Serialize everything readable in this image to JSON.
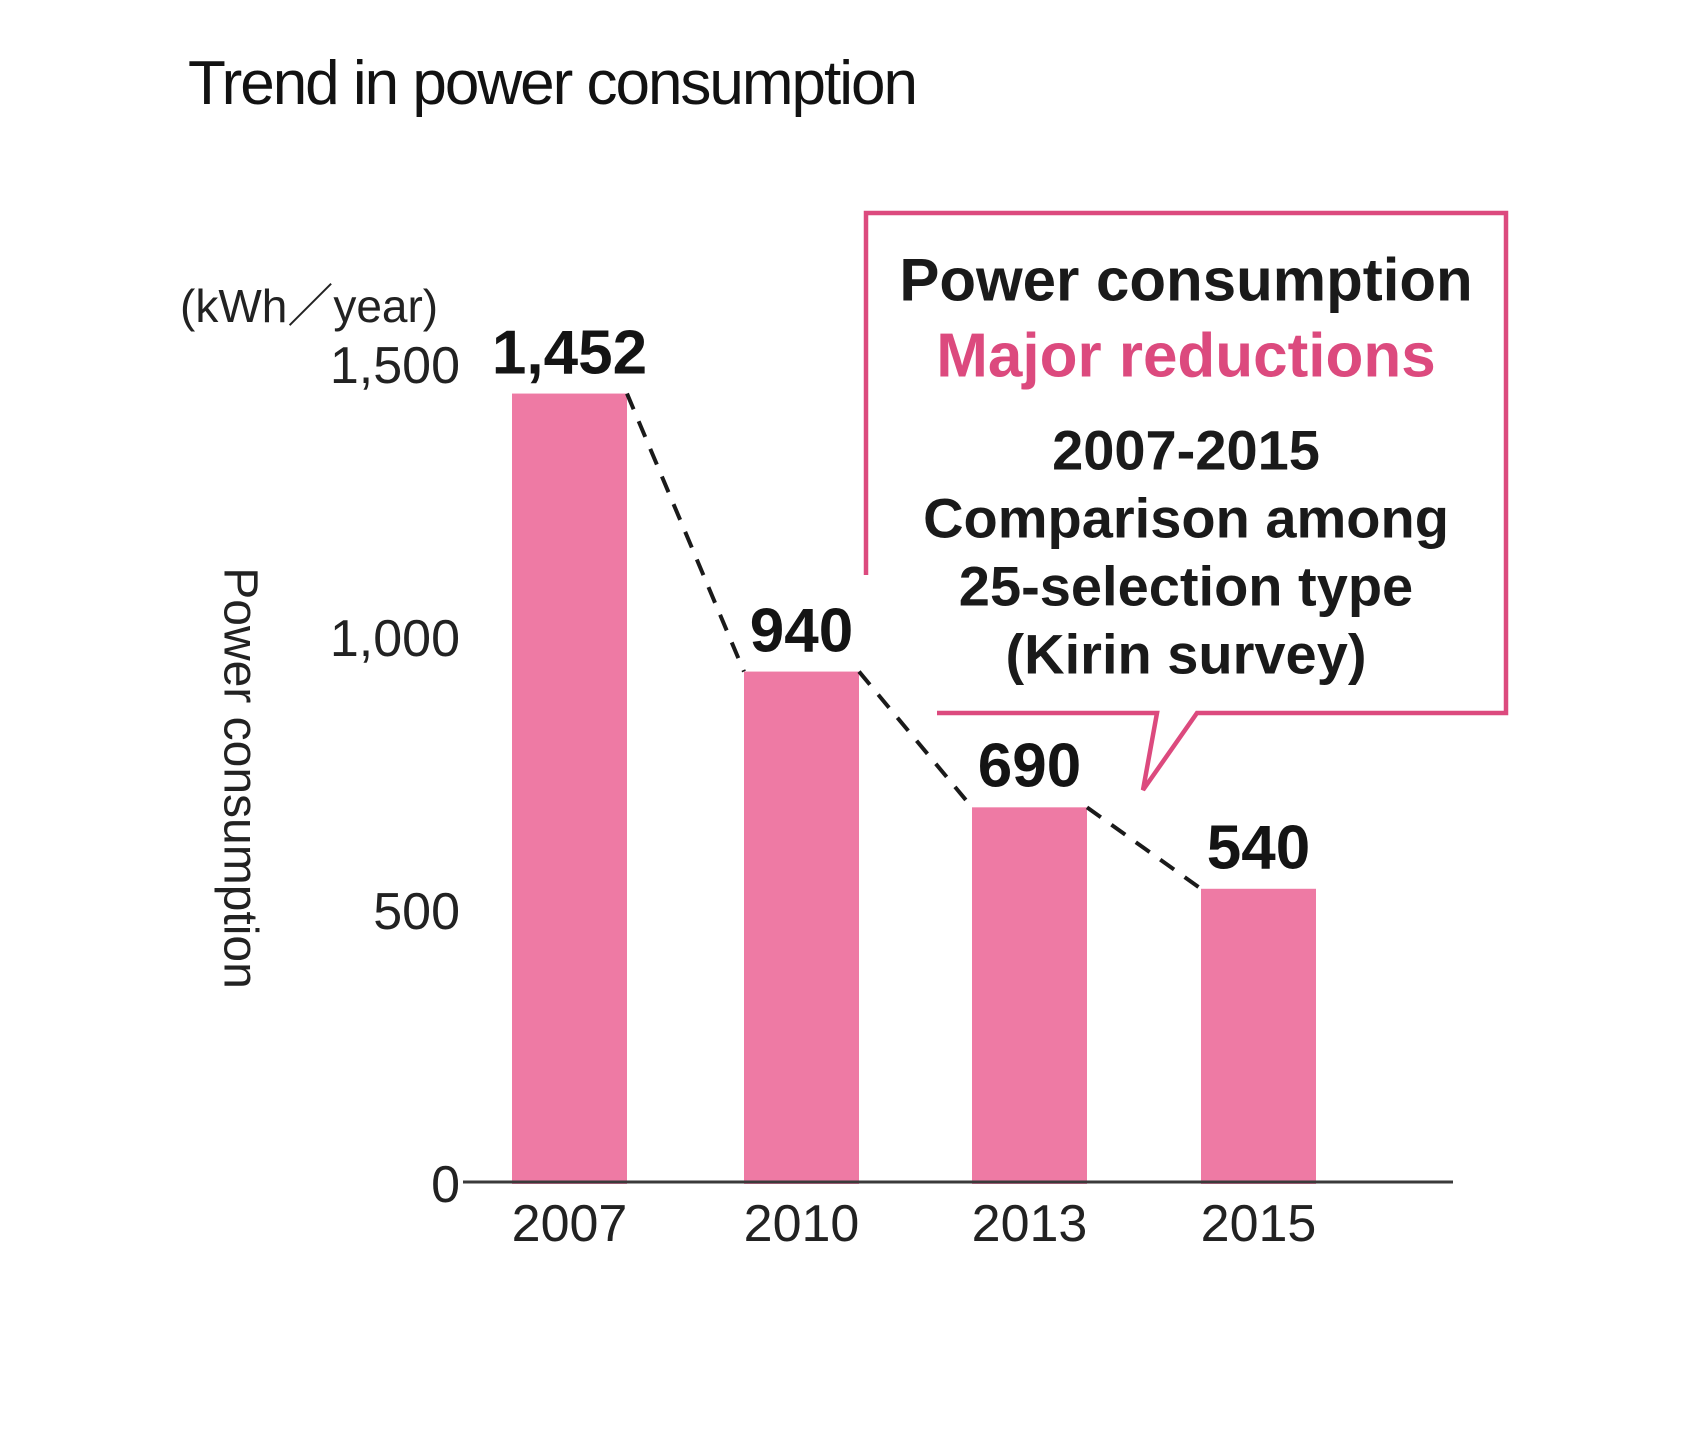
{
  "title": "Trend in power consumption",
  "unit_label": "(kWh／year)",
  "y_axis_title": "Power consumption",
  "chart_data": {
    "type": "bar",
    "title": "Trend in power consumption",
    "xlabel": "",
    "ylabel": "Power consumption",
    "unit": "kWh/year",
    "categories": [
      "2007",
      "2010",
      "2013",
      "2015"
    ],
    "values": [
      1452,
      940,
      690,
      540
    ],
    "data_labels": [
      "1,452",
      "940",
      "690",
      "540"
    ],
    "ylim": [
      0,
      1500
    ],
    "yticks": [
      {
        "value": 1500,
        "label": "1,500"
      },
      {
        "value": 1000,
        "label": "1,000"
      },
      {
        "value": 500,
        "label": "500"
      },
      {
        "value": 0,
        "label": "0"
      }
    ],
    "grid": false,
    "legend": false,
    "bar_color": "#ee7aa4",
    "connector_style": "dashed"
  },
  "callout": {
    "heading": "Power consumption",
    "highlight": "Major reductions",
    "lines": [
      "2007-2015",
      "Comparison among",
      "25-selection type",
      "(Kirin survey)"
    ]
  },
  "colors": {
    "bar_pink": "#ee7aa4",
    "accent_pink": "#dc4a7e",
    "ink": "#1a1a1a",
    "axis": "#3a3a3a"
  }
}
